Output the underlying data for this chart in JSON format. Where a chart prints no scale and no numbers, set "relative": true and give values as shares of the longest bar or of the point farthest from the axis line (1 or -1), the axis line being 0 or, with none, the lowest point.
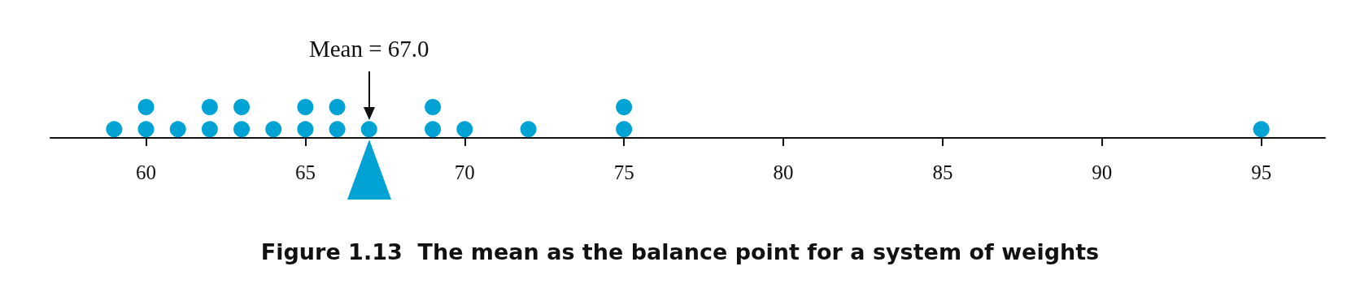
{
  "chart_data": {
    "type": "scatter",
    "title": "Figure 1.13  The mean as the balance point for a system of weights",
    "relative": true,
    "color": "#00a3d4",
    "marker": "circle",
    "tick_labels": "x",
    "x": [
      59,
      60,
      60,
      61,
      62,
      62,
      63,
      63,
      64,
      65,
      65,
      66,
      66,
      67,
      69,
      69,
      70,
      72,
      75,
      75,
      95
    ],
    "values": [
      0.28,
      0.28,
      1,
      0.28,
      0.28,
      1,
      0.28,
      1,
      0.28,
      0.28,
      1,
      0.28,
      1,
      0.28,
      0.28,
      1,
      0.28,
      0.28,
      0.28,
      1,
      0.28
    ],
    "xlim": [
      57,
      97
    ],
    "xticks": [
      60,
      65,
      70,
      75,
      80,
      85,
      90,
      95
    ],
    "annotations": [
      {
        "text": "Mean = 67.0",
        "x": 67
      }
    ]
  }
}
